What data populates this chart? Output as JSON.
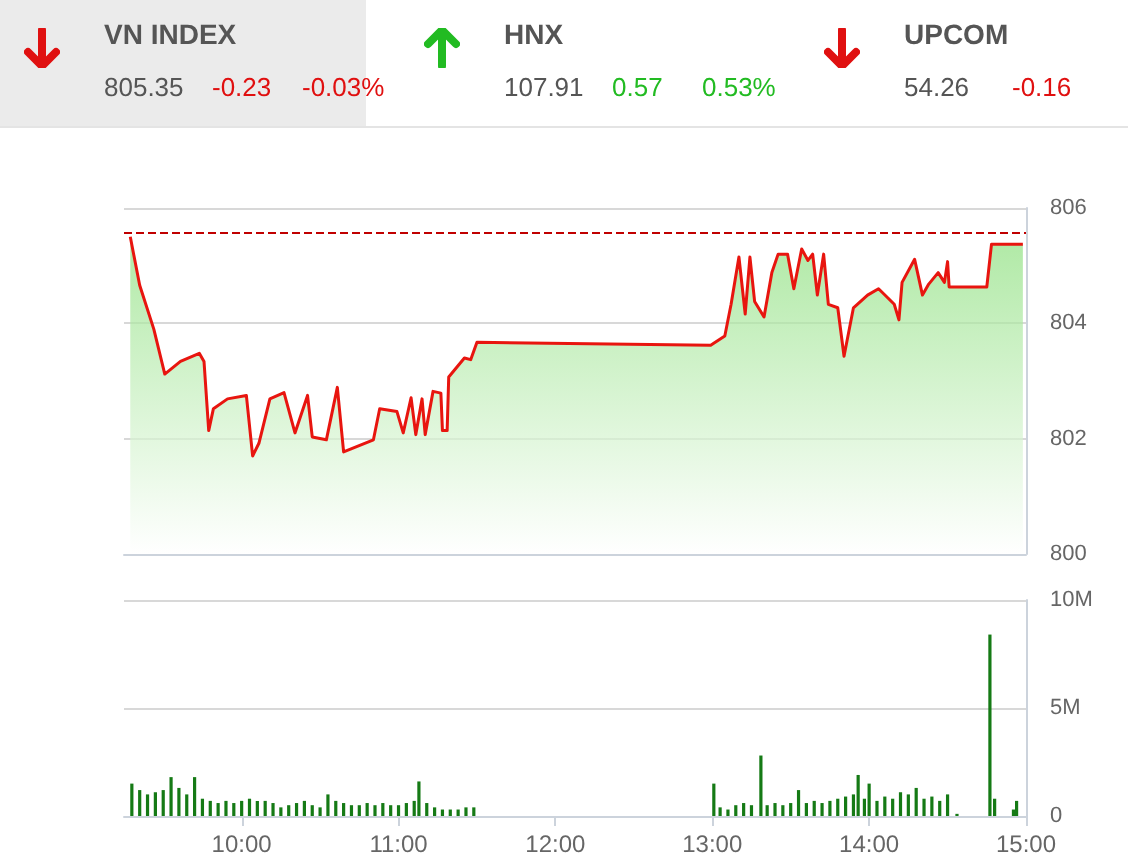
{
  "chart_data": [
    {
      "type": "other",
      "annotations": [
        "VN INDEX",
        "805.35",
        "-0.23",
        "-0.03%",
        "HNX",
        "107.91",
        "0.57",
        "0.53%",
        "UPCOM",
        "54.26",
        "-0.16"
      ]
    },
    {
      "type": "area",
      "tick_labels": "y",
      "grid": "y",
      "xlim": [
        9.25,
        15
      ],
      "ylim": [
        800,
        806
      ],
      "yticks": [
        800,
        802,
        804,
        806
      ],
      "x": [
        9.29,
        9.35,
        9.44,
        9.51,
        9.61,
        9.73,
        9.76,
        9.79,
        9.82,
        9.91,
        10.03,
        10.07,
        10.11,
        10.18,
        10.27,
        10.34,
        10.42,
        10.45,
        10.54,
        10.61,
        10.65,
        10.84,
        10.88,
        10.99,
        11.03,
        11.08,
        11.11,
        11.15,
        11.17,
        11.22,
        11.27,
        11.28,
        11.31,
        11.32,
        11.42,
        11.46,
        11.5,
        12.99,
        13.08,
        13.12,
        13.17,
        13.21,
        13.24,
        13.27,
        13.33,
        13.38,
        13.42,
        13.48,
        13.52,
        13.57,
        13.61,
        13.64,
        13.67,
        13.71,
        13.74,
        13.8,
        13.84,
        13.9,
        13.99,
        14.06,
        14.12,
        14.16,
        14.19,
        14.21,
        14.29,
        14.34,
        14.38,
        14.44,
        14.48,
        14.5,
        14.51,
        14.75,
        14.78,
        14.98
      ],
      "series": [
        {
          "color": "#e8150f",
          "values": [
            805.5,
            804.66,
            803.9,
            803.12,
            803.34,
            803.48,
            803.34,
            802.14,
            802.52,
            802.69,
            802.75,
            801.7,
            801.92,
            802.69,
            802.8,
            802.1,
            802.75,
            802.03,
            801.98,
            802.89,
            801.77,
            801.98,
            802.52,
            802.47,
            802.1,
            802.71,
            802.07,
            802.69,
            802.07,
            802.82,
            802.79,
            802.14,
            802.14,
            803.07,
            803.4,
            803.37,
            803.67,
            803.62,
            803.78,
            804.33,
            805.15,
            804.16,
            805.15,
            804.38,
            804.11,
            804.88,
            805.2,
            805.2,
            804.6,
            805.29,
            805.09,
            805.2,
            804.49,
            805.2,
            804.33,
            804.27,
            803.43,
            804.27,
            804.49,
            804.6,
            804.44,
            804.33,
            804.06,
            804.71,
            805.11,
            804.49,
            804.68,
            804.88,
            804.71,
            805.07,
            804.63,
            804.63,
            805.37,
            805.37
          ]
        }
      ],
      "ref_lines": [
        {
          "axis": "y",
          "value": 805.58,
          "color": "#c00000",
          "line_style": "dashed"
        }
      ]
    },
    {
      "type": "bar",
      "grid": "y",
      "xlim": [
        9.25,
        15
      ],
      "xticks": [
        {
          "value": 10,
          "label": "10:00"
        },
        {
          "value": 11,
          "label": "11:00"
        },
        {
          "value": 12,
          "label": "12:00"
        },
        {
          "value": 13,
          "label": "13:00"
        },
        {
          "value": 14,
          "label": "14:00"
        },
        {
          "value": 15,
          "label": "15:00"
        }
      ],
      "ylim": [
        0,
        10
      ],
      "yticks": [
        {
          "value": 0,
          "label": "0"
        },
        {
          "value": 5,
          "label": "5M"
        },
        {
          "value": 10,
          "label": "10M"
        }
      ],
      "x": [
        9.3,
        9.35,
        9.4,
        9.45,
        9.5,
        9.55,
        9.6,
        9.65,
        9.7,
        9.75,
        9.8,
        9.85,
        9.9,
        9.95,
        10,
        10.05,
        10.1,
        10.15,
        10.2,
        10.25,
        10.3,
        10.35,
        10.4,
        10.45,
        10.5,
        10.55,
        10.6,
        10.65,
        10.7,
        10.75,
        10.8,
        10.85,
        10.9,
        10.95,
        11,
        11.05,
        11.1,
        11.13,
        11.18,
        11.23,
        11.28,
        11.33,
        11.38,
        11.43,
        11.48,
        13.01,
        13.05,
        13.1,
        13.15,
        13.2,
        13.25,
        13.31,
        13.35,
        13.4,
        13.45,
        13.5,
        13.55,
        13.6,
        13.65,
        13.7,
        13.75,
        13.8,
        13.85,
        13.9,
        13.93,
        13.97,
        14,
        14.05,
        14.1,
        14.15,
        14.2,
        14.25,
        14.3,
        14.35,
        14.4,
        14.45,
        14.5,
        14.56,
        14.77,
        14.8,
        14.92,
        14.94
      ],
      "series": [
        {
          "color": "#157a15",
          "values": [
            1.5,
            1.2,
            1,
            1.1,
            1.2,
            1.8,
            1.3,
            1,
            1.8,
            0.8,
            0.7,
            0.6,
            0.7,
            0.6,
            0.7,
            0.8,
            0.7,
            0.7,
            0.6,
            0.4,
            0.5,
            0.6,
            0.7,
            0.5,
            0.4,
            1,
            0.7,
            0.6,
            0.5,
            0.5,
            0.6,
            0.5,
            0.6,
            0.5,
            0.5,
            0.6,
            0.7,
            1.6,
            0.6,
            0.4,
            0.3,
            0.3,
            0.3,
            0.4,
            0.4,
            1.5,
            0.4,
            0.3,
            0.5,
            0.6,
            0.5,
            2.8,
            0.5,
            0.6,
            0.5,
            0.6,
            1.2,
            0.6,
            0.7,
            0.6,
            0.7,
            0.8,
            0.9,
            1,
            1.9,
            0.8,
            1.5,
            0.7,
            0.9,
            0.8,
            1.1,
            1,
            1.3,
            0.8,
            0.9,
            0.7,
            1,
            0.1,
            8.4,
            0.8,
            0.3,
            0.7
          ]
        }
      ]
    }
  ]
}
